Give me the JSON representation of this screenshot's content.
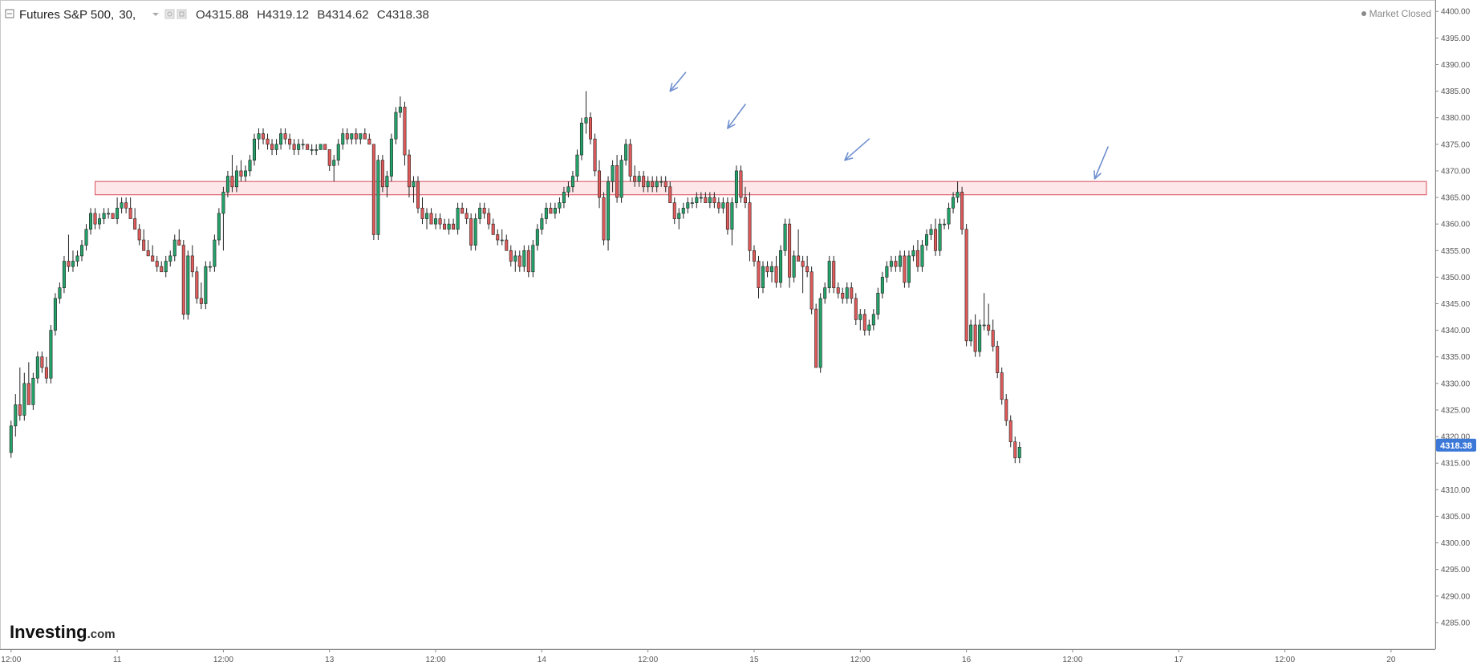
{
  "header": {
    "symbol": "Futures S&P 500",
    "interval": "30,",
    "ohlc": [
      {
        "label": "O",
        "value": "4315.88"
      },
      {
        "label": "H",
        "value": "4319.12"
      },
      {
        "label": "В",
        "value": "4314.62"
      },
      {
        "label": "C",
        "value": "4318.38"
      }
    ],
    "market_status": "Market Closed"
  },
  "logo": {
    "main": "Investing",
    "suffix": ".com"
  },
  "last_price": {
    "label": "4318.38",
    "value": 4318.38
  },
  "colors": {
    "up": "#23a36a",
    "down": "#e05a5a",
    "wick": "#222222",
    "zone_fill": "#fde3e5",
    "zone_stroke": "#d94d5a",
    "arrow": "#6f8fcf",
    "badge": "#3b78d8"
  },
  "chart_data": {
    "type": "candlestick",
    "interval_minutes": 30,
    "y_ticks": [
      "4285.00",
      "4290.00",
      "4295.00",
      "4300.00",
      "4305.00",
      "4310.00",
      "4315.00",
      "4320.00",
      "4325.00",
      "4330.00",
      "4335.00",
      "4340.00",
      "4345.00",
      "4350.00",
      "4355.00",
      "4360.00",
      "4365.00",
      "4370.00",
      "4375.00",
      "4380.00",
      "4385.00",
      "4390.00",
      "4395.00",
      "4400.00"
    ],
    "ylim": [
      4280,
      4402
    ],
    "x_ticks": [
      {
        "label": "12:00",
        "t": 0
      },
      {
        "label": "11",
        "t": 24
      },
      {
        "label": "12:00",
        "t": 48
      },
      {
        "label": "13",
        "t": 72
      },
      {
        "label": "12:00",
        "t": 96
      },
      {
        "label": "14",
        "t": 120
      },
      {
        "label": "12:00",
        "t": 144
      },
      {
        "label": "15",
        "t": 168
      },
      {
        "label": "12:00",
        "t": 192
      },
      {
        "label": "16",
        "t": 216
      },
      {
        "label": "12:00",
        "t": 240
      },
      {
        "label": "17",
        "t": 264
      },
      {
        "label": "12:00",
        "t": 288
      },
      {
        "label": "20",
        "t": 312
      }
    ],
    "xlim": [
      -2.5,
      322
    ],
    "resistance_zone": {
      "low": 4365.5,
      "high": 4368.0,
      "t_start": 19,
      "t_end": 320
    },
    "arrows": [
      {
        "t_tail": 152.5,
        "y_tail": 4388.5,
        "t_head": 149,
        "y_head": 4385.0
      },
      {
        "t_tail": 166,
        "y_tail": 4382.5,
        "t_head": 162,
        "y_head": 4378.0
      },
      {
        "t_tail": 194,
        "y_tail": 4376.0,
        "t_head": 188.5,
        "y_head": 4372.0
      },
      {
        "t_tail": 248,
        "y_tail": 4374.5,
        "t_head": 245,
        "y_head": 4368.5
      }
    ],
    "candles": [
      [
        4317,
        4323,
        4316,
        4322
      ],
      [
        4322,
        4328,
        4320,
        4326
      ],
      [
        4326,
        4333,
        4323,
        4324
      ],
      [
        4324,
        4332,
        4323,
        4330
      ],
      [
        4330,
        4334,
        4327,
        4326
      ],
      [
        4326,
        4332,
        4325,
        4331
      ],
      [
        4331,
        4336,
        4330,
        4335
      ],
      [
        4335,
        4336,
        4332,
        4333
      ],
      [
        4333,
        4335,
        4330,
        4331
      ],
      [
        4331,
        4341,
        4330,
        4340
      ],
      [
        4340,
        4347,
        4339,
        4346
      ],
      [
        4346,
        4349,
        4345,
        4348
      ],
      [
        4348,
        4354,
        4347,
        4353
      ],
      [
        4353,
        4358,
        4351,
        4352
      ],
      [
        4352,
        4355,
        4351,
        4353
      ],
      [
        4353,
        4355,
        4352,
        4354
      ],
      [
        4354,
        4357,
        4353,
        4356
      ],
      [
        4356,
        4360,
        4355,
        4359
      ],
      [
        4359,
        4363,
        4358,
        4362
      ],
      [
        4362,
        4363,
        4359,
        4360
      ],
      [
        4360,
        4362,
        4359,
        4361
      ],
      [
        4361,
        4363,
        4360,
        4362
      ],
      [
        4362,
        4363,
        4361,
        4362
      ],
      [
        4362,
        4362,
        4361,
        4361
      ],
      [
        4361,
        4365,
        4360,
        4363
      ],
      [
        4363,
        4365,
        4362,
        4364
      ],
      [
        4364,
        4365,
        4362,
        4363
      ],
      [
        4363,
        4365,
        4361,
        4361
      ],
      [
        4361,
        4363,
        4359,
        4359
      ],
      [
        4359,
        4360,
        4356,
        4357
      ],
      [
        4357,
        4359,
        4355,
        4355
      ],
      [
        4355,
        4357,
        4354,
        4354
      ],
      [
        4354,
        4356,
        4353,
        4353
      ],
      [
        4353,
        4354,
        4351,
        4352
      ],
      [
        4352,
        4353,
        4351,
        4351
      ],
      [
        4351,
        4354,
        4350,
        4353
      ],
      [
        4353,
        4355,
        4352,
        4354
      ],
      [
        4354,
        4358,
        4353,
        4357
      ],
      [
        4357,
        4359,
        4356,
        4356
      ],
      [
        4356,
        4357,
        4342,
        4343
      ],
      [
        4343,
        4355,
        4342,
        4354
      ],
      [
        4354,
        4356,
        4350,
        4351
      ],
      [
        4351,
        4352,
        4345,
        4346
      ],
      [
        4346,
        4349,
        4344,
        4345
      ],
      [
        4345,
        4353,
        4344,
        4352
      ],
      [
        4352,
        4353,
        4351,
        4352
      ],
      [
        4352,
        4358,
        4351,
        4357
      ],
      [
        4357,
        4363,
        4356,
        4362
      ],
      [
        4362,
        4367,
        4355,
        4366
      ],
      [
        4366,
        4370,
        4365,
        4369
      ],
      [
        4369,
        4373,
        4366,
        4367
      ],
      [
        4367,
        4371,
        4366,
        4370
      ],
      [
        4370,
        4372,
        4368,
        4369
      ],
      [
        4369,
        4371,
        4368,
        4370
      ],
      [
        4370,
        4373,
        4369,
        4372
      ],
      [
        4372,
        4377,
        4371,
        4376
      ],
      [
        4376,
        4378,
        4374,
        4377
      ],
      [
        4377,
        4378,
        4375,
        4376
      ],
      [
        4376,
        4377,
        4374,
        4375
      ],
      [
        4375,
        4376,
        4373,
        4374
      ],
      [
        4374,
        4376,
        4373,
        4375
      ],
      [
        4375,
        4378,
        4374,
        4377
      ],
      [
        4377,
        4378,
        4375,
        4376
      ],
      [
        4376,
        4377,
        4374,
        4375
      ],
      [
        4375,
        4376,
        4373,
        4374
      ],
      [
        4374,
        4376,
        4373,
        4375
      ],
      [
        4375,
        4376,
        4374,
        4375
      ],
      [
        4375,
        4375,
        4374,
        4374
      ],
      [
        4374,
        4375,
        4373,
        4374
      ],
      [
        4374,
        4375,
        4373,
        4374
      ],
      [
        4374,
        4375,
        4374,
        4375
      ],
      [
        4375,
        4375,
        4374,
        4374
      ],
      [
        4374,
        4374,
        4370,
        4371
      ],
      [
        4371,
        4373,
        4368,
        4372
      ],
      [
        4372,
        4376,
        4371,
        4375
      ],
      [
        4375,
        4378,
        4374,
        4377
      ],
      [
        4377,
        4378,
        4375,
        4376
      ],
      [
        4376,
        4377,
        4375,
        4377
      ],
      [
        4377,
        4378,
        4375,
        4376
      ],
      [
        4376,
        4377,
        4375,
        4377
      ],
      [
        4377,
        4378,
        4376,
        4376
      ],
      [
        4376,
        4377,
        4375,
        4375
      ],
      [
        4375,
        4375,
        4357,
        4358
      ],
      [
        4358,
        4373,
        4357,
        4372
      ],
      [
        4372,
        4373,
        4366,
        4367
      ],
      [
        4367,
        4370,
        4365,
        4369
      ],
      [
        4369,
        4377,
        4368,
        4376
      ],
      [
        4376,
        4382,
        4375,
        4381
      ],
      [
        4381,
        4384,
        4380,
        4382
      ],
      [
        4382,
        4383,
        4371,
        4373
      ],
      [
        4373,
        4374,
        4365,
        4367
      ],
      [
        4367,
        4369,
        4364,
        4368
      ],
      [
        4368,
        4369,
        4362,
        4363
      ],
      [
        4363,
        4365,
        4360,
        4361
      ],
      [
        4361,
        4363,
        4359,
        4362
      ],
      [
        4362,
        4363,
        4360,
        4360
      ],
      [
        4360,
        4362,
        4359,
        4361
      ],
      [
        4361,
        4362,
        4359,
        4360
      ],
      [
        4360,
        4361,
        4359,
        4359
      ],
      [
        4359,
        4361,
        4358,
        4360
      ],
      [
        4360,
        4361,
        4359,
        4359
      ],
      [
        4359,
        4364,
        4358,
        4363
      ],
      [
        4363,
        4364,
        4362,
        4362
      ],
      [
        4362,
        4363,
        4360,
        4361
      ],
      [
        4361,
        4362,
        4355,
        4356
      ],
      [
        4356,
        4362,
        4355,
        4361
      ],
      [
        4361,
        4364,
        4360,
        4363
      ],
      [
        4363,
        4364,
        4361,
        4362
      ],
      [
        4362,
        4363,
        4359,
        4360
      ],
      [
        4360,
        4361,
        4358,
        4358
      ],
      [
        4358,
        4359,
        4356,
        4357
      ],
      [
        4357,
        4359,
        4356,
        4357
      ],
      [
        4357,
        4358,
        4355,
        4355
      ],
      [
        4355,
        4356,
        4352,
        4353
      ],
      [
        4353,
        4355,
        4351,
        4354
      ],
      [
        4354,
        4355,
        4351,
        4352
      ],
      [
        4352,
        4356,
        4351,
        4355
      ],
      [
        4355,
        4356,
        4350,
        4351
      ],
      [
        4351,
        4357,
        4350,
        4356
      ],
      [
        4356,
        4360,
        4355,
        4359
      ],
      [
        4359,
        4362,
        4358,
        4361
      ],
      [
        4361,
        4364,
        4360,
        4363
      ],
      [
        4363,
        4364,
        4362,
        4362
      ],
      [
        4362,
        4364,
        4361,
        4363
      ],
      [
        4363,
        4365,
        4362,
        4364
      ],
      [
        4364,
        4367,
        4363,
        4366
      ],
      [
        4366,
        4368,
        4365,
        4367
      ],
      [
        4367,
        4370,
        4366,
        4369
      ],
      [
        4369,
        4374,
        4368,
        4373
      ],
      [
        4373,
        4380,
        4372,
        4379
      ],
      [
        4379,
        4385,
        4377,
        4380
      ],
      [
        4380,
        4381,
        4375,
        4376
      ],
      [
        4376,
        4377,
        4369,
        4370
      ],
      [
        4370,
        4372,
        4363,
        4365
      ],
      [
        4365,
        4366,
        4356,
        4357
      ],
      [
        4357,
        4369,
        4355,
        4368
      ],
      [
        4368,
        4372,
        4366,
        4371
      ],
      [
        4371,
        4373,
        4364,
        4365
      ],
      [
        4365,
        4373,
        4364,
        4372
      ],
      [
        4372,
        4376,
        4371,
        4375
      ],
      [
        4375,
        4376,
        4368,
        4369
      ],
      [
        4369,
        4371,
        4367,
        4368
      ],
      [
        4368,
        4370,
        4367,
        4369
      ],
      [
        4369,
        4370,
        4366,
        4367
      ],
      [
        4367,
        4369,
        4366,
        4368
      ],
      [
        4368,
        4369,
        4366,
        4367
      ],
      [
        4367,
        4369,
        4366,
        4368
      ],
      [
        4368,
        4369,
        4367,
        4368
      ],
      [
        4368,
        4369,
        4366,
        4367
      ],
      [
        4367,
        4368,
        4364,
        4364
      ],
      [
        4364,
        4365,
        4360,
        4361
      ],
      [
        4361,
        4363,
        4359,
        4362
      ],
      [
        4362,
        4364,
        4361,
        4363
      ],
      [
        4363,
        4365,
        4362,
        4364
      ],
      [
        4364,
        4365,
        4363,
        4364
      ],
      [
        4364,
        4366,
        4363,
        4365
      ],
      [
        4365,
        4366,
        4364,
        4365
      ],
      [
        4365,
        4366,
        4364,
        4364
      ],
      [
        4364,
        4366,
        4363,
        4365
      ],
      [
        4365,
        4366,
        4363,
        4364
      ],
      [
        4364,
        4365,
        4362,
        4363
      ],
      [
        4363,
        4365,
        4362,
        4364
      ],
      [
        4364,
        4365,
        4358,
        4359
      ],
      [
        4359,
        4365,
        4356,
        4364
      ],
      [
        4364,
        4371,
        4363,
        4370
      ],
      [
        4370,
        4371,
        4364,
        4365
      ],
      [
        4365,
        4367,
        4363,
        4364
      ],
      [
        4364,
        4366,
        4353,
        4355
      ],
      [
        4355,
        4356,
        4352,
        4353
      ],
      [
        4353,
        4354,
        4346,
        4348
      ],
      [
        4348,
        4353,
        4347,
        4352
      ],
      [
        4352,
        4353,
        4350,
        4351
      ],
      [
        4351,
        4353,
        4349,
        4352
      ],
      [
        4352,
        4354,
        4348,
        4349
      ],
      [
        4349,
        4356,
        4348,
        4355
      ],
      [
        4355,
        4361,
        4354,
        4360
      ],
      [
        4360,
        4361,
        4348,
        4350
      ],
      [
        4350,
        4355,
        4349,
        4354
      ],
      [
        4354,
        4359,
        4353,
        4353
      ],
      [
        4353,
        4354,
        4347,
        4352
      ],
      [
        4352,
        4354,
        4350,
        4351
      ],
      [
        4351,
        4352,
        4343,
        4344
      ],
      [
        4344,
        4345,
        4333,
        4333
      ],
      [
        4333,
        4347,
        4332,
        4346
      ],
      [
        4346,
        4349,
        4345,
        4348
      ],
      [
        4348,
        4354,
        4347,
        4353
      ],
      [
        4353,
        4354,
        4347,
        4348
      ],
      [
        4348,
        4349,
        4346,
        4347
      ],
      [
        4347,
        4348,
        4345,
        4346
      ],
      [
        4346,
        4349,
        4345,
        4348
      ],
      [
        4348,
        4349,
        4345,
        4346
      ],
      [
        4346,
        4347,
        4341,
        4342
      ],
      [
        4342,
        4344,
        4340,
        4343
      ],
      [
        4343,
        4344,
        4339,
        4340
      ],
      [
        4340,
        4342,
        4339,
        4341
      ],
      [
        4341,
        4344,
        4340,
        4343
      ],
      [
        4343,
        4348,
        4342,
        4347
      ],
      [
        4347,
        4351,
        4346,
        4350
      ],
      [
        4350,
        4353,
        4349,
        4352
      ],
      [
        4352,
        4354,
        4351,
        4353
      ],
      [
        4353,
        4354,
        4351,
        4352
      ],
      [
        4352,
        4355,
        4351,
        4354
      ],
      [
        4354,
        4355,
        4348,
        4349
      ],
      [
        4349,
        4355,
        4348,
        4354
      ],
      [
        4354,
        4356,
        4353,
        4355
      ],
      [
        4355,
        4357,
        4351,
        4352
      ],
      [
        4352,
        4357,
        4351,
        4356
      ],
      [
        4356,
        4359,
        4355,
        4358
      ],
      [
        4358,
        4360,
        4357,
        4359
      ],
      [
        4359,
        4361,
        4354,
        4355
      ],
      [
        4355,
        4361,
        4354,
        4360
      ],
      [
        4360,
        4361,
        4359,
        4360
      ],
      [
        4360,
        4364,
        4359,
        4363
      ],
      [
        4363,
        4366,
        4362,
        4365
      ],
      [
        4365,
        4368,
        4364,
        4366
      ],
      [
        4366,
        4367,
        4358,
        4359
      ],
      [
        4359,
        4360,
        4337,
        4338
      ],
      [
        4338,
        4342,
        4337,
        4341
      ],
      [
        4341,
        4343,
        4335,
        4336
      ],
      [
        4336,
        4342,
        4335,
        4341
      ],
      [
        4341,
        4347,
        4340,
        4341
      ],
      [
        4341,
        4345,
        4339,
        4340
      ],
      [
        4340,
        4342,
        4336,
        4337
      ],
      [
        4337,
        4338,
        4331,
        4332
      ],
      [
        4332,
        4333,
        4326,
        4327
      ],
      [
        4327,
        4328,
        4322,
        4323
      ],
      [
        4323,
        4324,
        4318,
        4319
      ],
      [
        4319,
        4320,
        4315,
        4316
      ],
      [
        4316,
        4319,
        4315,
        4318
      ]
    ]
  }
}
